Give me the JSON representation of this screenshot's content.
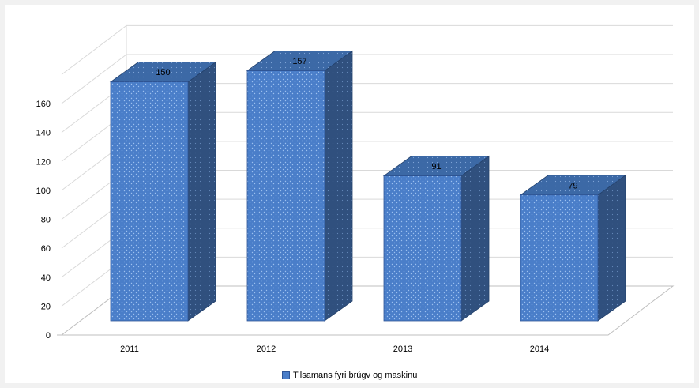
{
  "chart_data": {
    "type": "bar",
    "categories": [
      "2011",
      "2012",
      "2013",
      "2014"
    ],
    "series": [
      {
        "name": "Tilsamans fyri brúgv og maskinu",
        "values": [
          150,
          157,
          91,
          79
        ]
      }
    ],
    "data_labels": [
      "150",
      "157",
      "91",
      "79"
    ],
    "ylim": [
      0,
      160
    ],
    "yticks": [
      "0",
      "20",
      "40",
      "60",
      "80",
      "100",
      "120",
      "140",
      "160"
    ],
    "title": "",
    "xlabel": "",
    "ylabel": "",
    "grid": true,
    "legend_position": "bottom",
    "style": "3d-column",
    "colors": {
      "front": "#4a7ec9",
      "top": "#3a6aa8",
      "side": "#2f4f7c",
      "grid": "#d9d9d9"
    }
  },
  "legend": {
    "label": "Tilsamans fyri brúgv og maskinu"
  }
}
